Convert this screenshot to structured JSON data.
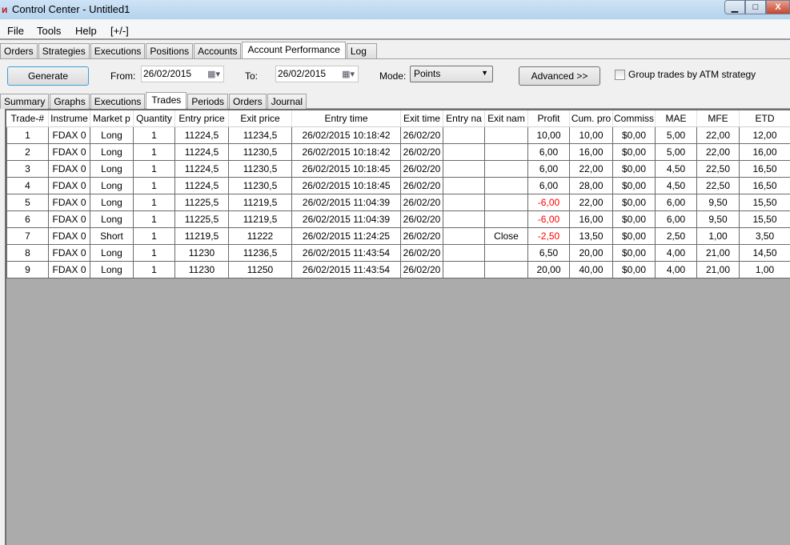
{
  "window": {
    "title": "Control Center - Untitled1",
    "minimize": "▁",
    "maximize": "□",
    "close": "X"
  },
  "menu": [
    "File",
    "Tools",
    "Help",
    "[+/-]"
  ],
  "main_tabs": [
    {
      "label": "Orders"
    },
    {
      "label": "Strategies"
    },
    {
      "label": "Executions"
    },
    {
      "label": "Positions"
    },
    {
      "label": "Accounts"
    },
    {
      "label": "Account Performance",
      "active": true
    },
    {
      "label": "Log"
    }
  ],
  "toolbar": {
    "generate": "Generate",
    "from_label": "From:",
    "from_value": "26/02/2015",
    "to_label": "To:",
    "to_value": "26/02/2015",
    "mode_label": "Mode:",
    "mode_value": "Points",
    "advanced": "Advanced >>",
    "group_label": "Group trades by ATM strategy",
    "group_checked": false
  },
  "sub_tabs": [
    {
      "label": "Summary"
    },
    {
      "label": "Graphs"
    },
    {
      "label": "Executions"
    },
    {
      "label": "Trades",
      "active": true
    },
    {
      "label": "Periods"
    },
    {
      "label": "Orders"
    },
    {
      "label": "Journal"
    }
  ],
  "colors": {
    "negative": "#ff0000",
    "grid_background": "#ababab"
  },
  "table": {
    "columns": [
      "Trade-#",
      "Instrume",
      "Market p",
      "Quantity",
      "Entry price",
      "Exit price",
      "Entry time",
      "Exit time",
      "Entry na",
      "Exit nam",
      "Profit",
      "Cum. pro",
      "Commiss",
      "MAE",
      "MFE",
      "ETD"
    ],
    "rows": [
      [
        "1",
        "FDAX 0",
        "Long",
        "1",
        "11224,5",
        "11234,5",
        "26/02/2015 10:18:42",
        "26/02/20",
        "",
        "",
        "10,00",
        "10,00",
        "$0,00",
        "5,00",
        "22,00",
        "12,00"
      ],
      [
        "2",
        "FDAX 0",
        "Long",
        "1",
        "11224,5",
        "11230,5",
        "26/02/2015 10:18:42",
        "26/02/20",
        "",
        "",
        "6,00",
        "16,00",
        "$0,00",
        "5,00",
        "22,00",
        "16,00"
      ],
      [
        "3",
        "FDAX 0",
        "Long",
        "1",
        "11224,5",
        "11230,5",
        "26/02/2015 10:18:45",
        "26/02/20",
        "",
        "",
        "6,00",
        "22,00",
        "$0,00",
        "4,50",
        "22,50",
        "16,50"
      ],
      [
        "4",
        "FDAX 0",
        "Long",
        "1",
        "11224,5",
        "11230,5",
        "26/02/2015 10:18:45",
        "26/02/20",
        "",
        "",
        "6,00",
        "28,00",
        "$0,00",
        "4,50",
        "22,50",
        "16,50"
      ],
      [
        "5",
        "FDAX 0",
        "Long",
        "1",
        "11225,5",
        "11219,5",
        "26/02/2015 11:04:39",
        "26/02/20",
        "",
        "",
        "-6,00",
        "22,00",
        "$0,00",
        "6,00",
        "9,50",
        "15,50"
      ],
      [
        "6",
        "FDAX 0",
        "Long",
        "1",
        "11225,5",
        "11219,5",
        "26/02/2015 11:04:39",
        "26/02/20",
        "",
        "",
        "-6,00",
        "16,00",
        "$0,00",
        "6,00",
        "9,50",
        "15,50"
      ],
      [
        "7",
        "FDAX 0",
        "Short",
        "1",
        "11219,5",
        "11222",
        "26/02/2015 11:24:25",
        "26/02/20",
        "",
        "Close",
        "-2,50",
        "13,50",
        "$0,00",
        "2,50",
        "1,00",
        "3,50"
      ],
      [
        "8",
        "FDAX 0",
        "Long",
        "1",
        "11230",
        "11236,5",
        "26/02/2015 11:43:54",
        "26/02/20",
        "",
        "",
        "6,50",
        "20,00",
        "$0,00",
        "4,00",
        "21,00",
        "14,50"
      ],
      [
        "9",
        "FDAX 0",
        "Long",
        "1",
        "11230",
        "11250",
        "26/02/2015 11:43:54",
        "26/02/20",
        "",
        "",
        "20,00",
        "40,00",
        "$0,00",
        "4,00",
        "21,00",
        "1,00"
      ]
    ]
  }
}
